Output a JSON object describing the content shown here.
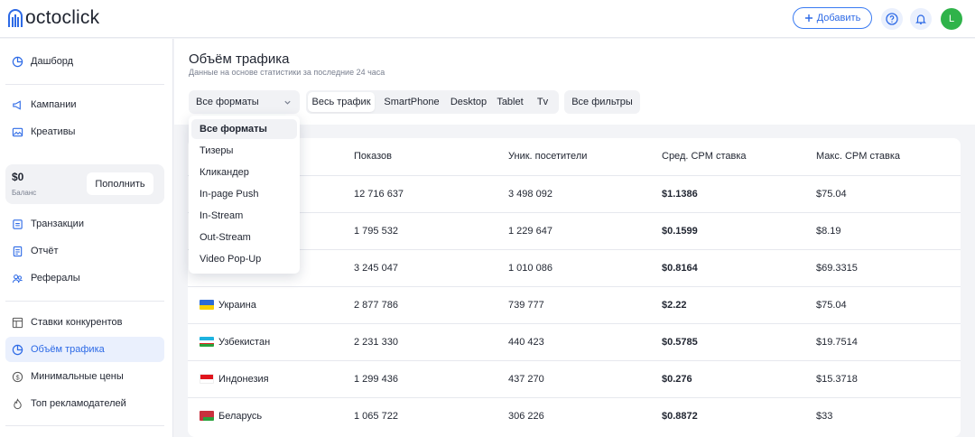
{
  "header": {
    "logo_text": "octoclick",
    "add_button_label": "Добавить",
    "help_icon": "question-circle-icon",
    "notifications_icon": "bell-icon",
    "avatar_initial": "L",
    "avatar_color": "#2fb34a",
    "accent_color": "#2d6ae6"
  },
  "sidebar": {
    "items": [
      {
        "label": "Дашборд",
        "icon": "pie-chart-icon"
      },
      {
        "label": "Кампании",
        "icon": "megaphone-icon"
      },
      {
        "label": "Креативы",
        "icon": "image-icon"
      },
      {
        "label": "Транзакции",
        "icon": "transactions-icon"
      },
      {
        "label": "Отчёт",
        "icon": "report-icon"
      },
      {
        "label": "Рефералы",
        "icon": "users-icon"
      },
      {
        "label": "Ставки конкурентов",
        "icon": "table-icon"
      },
      {
        "label": "Объём трафика",
        "icon": "pie-chart-icon",
        "active": true
      },
      {
        "label": "Минимальные цены",
        "icon": "dollar-circle-icon"
      },
      {
        "label": "Топ рекламодателей",
        "icon": "fire-icon"
      }
    ],
    "balance": {
      "amount": "$0",
      "label": "Баланс",
      "topup_label": "Пополнить"
    }
  },
  "main": {
    "title": "Объём трафика",
    "subtitle": "Данные на основе статистики за последние 24 часа",
    "format_select": {
      "value": "Все форматы"
    },
    "device_tabs": [
      {
        "label": "Весь трафик",
        "active": true
      },
      {
        "label": "SmartPhone"
      },
      {
        "label": "Desktop"
      },
      {
        "label": "Tablet"
      },
      {
        "label": "Tv"
      }
    ],
    "filters_button": "Все фильтры",
    "format_dropdown": [
      "Все форматы",
      "Тизеры",
      "Кликандер",
      "In-page Push",
      "In-Stream",
      "Out-Stream",
      "Video Pop-Up"
    ],
    "table": {
      "columns": [
        "Показов",
        "Уник. посетители",
        "Сред. CPM ставка",
        "Макс. CPM ставка"
      ],
      "rows": [
        {
          "country": "",
          "flag": "",
          "impressions": "12 716 637",
          "unique": "3 498 092",
          "avg_cpm": "$1.1386",
          "max_cpm": "$75.04"
        },
        {
          "country": "",
          "flag": "",
          "impressions": "1 795 532",
          "unique": "1 229 647",
          "avg_cpm": "$0.1599",
          "max_cpm": "$8.19"
        },
        {
          "country": "",
          "flag": "",
          "impressions": "3 245 047",
          "unique": "1 010 086",
          "avg_cpm": "$0.8164",
          "max_cpm": "$69.3315"
        },
        {
          "country": "Украина",
          "flag": "ukraine-flag-icon",
          "impressions": "2 877 786",
          "unique": "739 777",
          "avg_cpm": "$2.22",
          "max_cpm": "$75.04"
        },
        {
          "country": "Узбекистан",
          "flag": "uzbekistan-flag-icon",
          "impressions": "2 231 330",
          "unique": "440 423",
          "avg_cpm": "$0.5785",
          "max_cpm": "$19.7514"
        },
        {
          "country": "Индонезия",
          "flag": "indonesia-flag-icon",
          "impressions": "1 299 436",
          "unique": "437 270",
          "avg_cpm": "$0.276",
          "max_cpm": "$15.3718"
        },
        {
          "country": "Беларусь",
          "flag": "belarus-flag-icon",
          "impressions": "1 065 722",
          "unique": "306 226",
          "avg_cpm": "$0.8872",
          "max_cpm": "$33"
        }
      ]
    }
  }
}
